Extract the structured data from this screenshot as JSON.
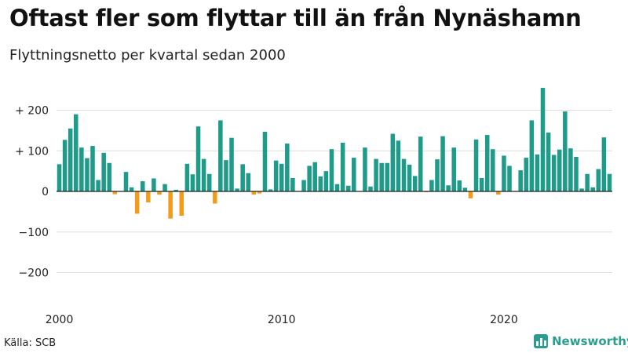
{
  "title": "Oftast fler som flyttar till än från Nynäshamn",
  "subtitle": "Flyttningsnetto per kvartal sedan 2000",
  "source": "Källa: SCB",
  "brand": "Newsworthy",
  "colors": {
    "positive": "#1f9b8a",
    "negative": "#f39c1c",
    "grid": "#dddddd",
    "axis": "#222222",
    "brand": "#2a9d8f"
  },
  "chart_data": {
    "type": "bar",
    "title": "Oftast fler som flyttar till än från Nynäshamn",
    "subtitle": "Flyttningsnetto per kvartal sedan 2000",
    "xlabel": "",
    "ylabel": "",
    "ylim": [
      -220,
      265
    ],
    "yticks": [
      200,
      100,
      0,
      -100,
      -200
    ],
    "ytick_labels": [
      "+ 200",
      "+ 100",
      "0",
      "−100",
      "−200"
    ],
    "xtick_labels": [
      "2000",
      "2010",
      "2020"
    ],
    "xtick_index": [
      0,
      40,
      80
    ],
    "start": "2000 Q1",
    "values": [
      67,
      127,
      155,
      190,
      108,
      82,
      112,
      28,
      95,
      70,
      -7,
      0,
      48,
      10,
      -55,
      25,
      -27,
      32,
      -8,
      18,
      -67,
      4,
      -60,
      68,
      42,
      160,
      80,
      43,
      -30,
      175,
      77,
      132,
      7,
      67,
      45,
      -8,
      -5,
      147,
      5,
      76,
      68,
      118,
      33,
      0,
      28,
      63,
      72,
      37,
      50,
      104,
      18,
      120,
      14,
      83,
      0,
      108,
      12,
      80,
      70,
      70,
      142,
      125,
      80,
      66,
      38,
      135,
      -2,
      28,
      79,
      136,
      15,
      108,
      27,
      9,
      -17,
      128,
      33,
      139,
      104,
      -8,
      88,
      63,
      0,
      52,
      83,
      175,
      91,
      255,
      145,
      90,
      103,
      197,
      106,
      85,
      7,
      43,
      10,
      55,
      133,
      43
    ]
  }
}
